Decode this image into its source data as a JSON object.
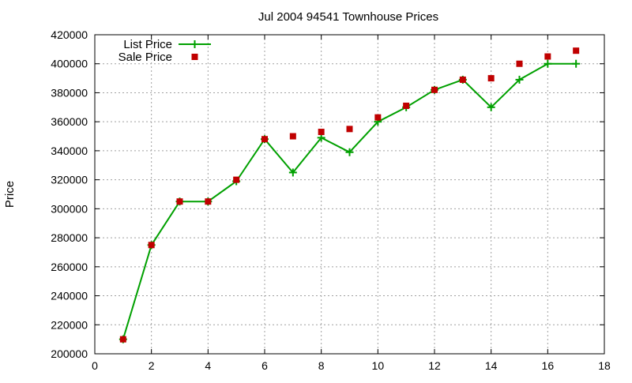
{
  "chart_data": {
    "type": "line",
    "title": "Jul 2004 94541 Townhouse Prices",
    "xlabel": "",
    "ylabel": "Price",
    "xlim": [
      0,
      18
    ],
    "ylim": [
      200000,
      420000
    ],
    "x_ticks": [
      "0",
      "2",
      "4",
      "6",
      "8",
      "10",
      "12",
      "14",
      "16",
      "18"
    ],
    "y_ticks": [
      "200000",
      "220000",
      "240000",
      "260000",
      "280000",
      "300000",
      "320000",
      "340000",
      "360000",
      "380000",
      "400000",
      "420000"
    ],
    "grid": true,
    "legend_position": "top-left",
    "series": [
      {
        "name": "List Price",
        "style": "line-with-plus-markers",
        "color": "#00a000",
        "points": [
          [
            1,
            210000
          ],
          [
            2,
            275000
          ],
          [
            3,
            305000
          ],
          [
            4,
            305000
          ],
          [
            5,
            319000
          ],
          [
            6,
            348000
          ],
          [
            7,
            325000
          ],
          [
            8,
            349000
          ],
          [
            9,
            339000
          ],
          [
            10,
            360000
          ],
          [
            11,
            370000
          ],
          [
            12,
            382000
          ],
          [
            13,
            389000
          ],
          [
            14,
            370000
          ],
          [
            15,
            389000
          ],
          [
            16,
            400000
          ],
          [
            17,
            400000
          ]
        ]
      },
      {
        "name": "Sale Price",
        "style": "square-markers",
        "color": "#c00000",
        "points": [
          [
            1,
            210000
          ],
          [
            2,
            275000
          ],
          [
            3,
            305000
          ],
          [
            4,
            305000
          ],
          [
            5,
            320000
          ],
          [
            6,
            348000
          ],
          [
            7,
            350000
          ],
          [
            8,
            353000
          ],
          [
            9,
            355000
          ],
          [
            10,
            363000
          ],
          [
            11,
            371000
          ],
          [
            12,
            382000
          ],
          [
            13,
            389000
          ],
          [
            14,
            390000
          ],
          [
            15,
            400000
          ],
          [
            16,
            405000
          ],
          [
            17,
            409000
          ]
        ]
      }
    ]
  }
}
